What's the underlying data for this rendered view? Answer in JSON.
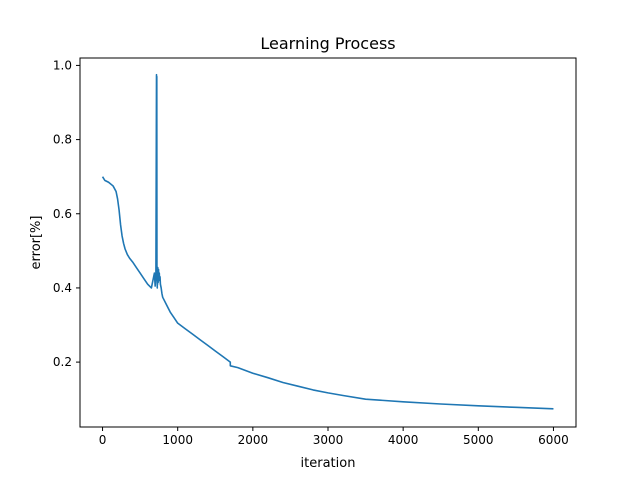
{
  "chart_data": {
    "type": "line",
    "title": "Learning Process",
    "xlabel": "iteration",
    "ylabel": "error[%]",
    "xlim": [
      -300,
      6300
    ],
    "ylim": [
      0.025,
      1.02
    ],
    "xticks": [
      0,
      1000,
      2000,
      3000,
      4000,
      5000,
      6000
    ],
    "xtick_labels": [
      "0",
      "1000",
      "2000",
      "3000",
      "4000",
      "5000",
      "6000"
    ],
    "yticks": [
      0.2,
      0.4,
      0.6,
      0.8,
      1.0
    ],
    "ytick_labels": [
      "0.2",
      "0.4",
      "0.6",
      "0.8",
      "1.0"
    ],
    "grid": false,
    "series": [
      {
        "color": "#1f77b4",
        "x": [
          0,
          30,
          80,
          140,
          180,
          200,
          220,
          240,
          260,
          280,
          300,
          330,
          360,
          400,
          450,
          500,
          550,
          600,
          650,
          690,
          700,
          710,
          718,
          720,
          722,
          724,
          726,
          728,
          730,
          732,
          735,
          740,
          745,
          750,
          755,
          760,
          765,
          770,
          780,
          790,
          800,
          850,
          900,
          950,
          1000,
          1100,
          1200,
          1300,
          1400,
          1500,
          1600,
          1700,
          1700,
          1800,
          2000,
          2200,
          2400,
          2600,
          2800,
          3000,
          3200,
          3500,
          4000,
          4500,
          5000,
          5500,
          6000
        ],
        "y": [
          0.7,
          0.69,
          0.685,
          0.675,
          0.66,
          0.64,
          0.61,
          0.57,
          0.54,
          0.52,
          0.505,
          0.49,
          0.48,
          0.47,
          0.455,
          0.44,
          0.425,
          0.41,
          0.4,
          0.44,
          0.405,
          0.43,
          0.975,
          0.43,
          0.97,
          0.42,
          0.45,
          0.4,
          0.44,
          0.41,
          0.455,
          0.415,
          0.45,
          0.42,
          0.44,
          0.42,
          0.43,
          0.41,
          0.4,
          0.385,
          0.375,
          0.355,
          0.335,
          0.32,
          0.305,
          0.29,
          0.275,
          0.26,
          0.245,
          0.23,
          0.215,
          0.2,
          0.19,
          0.185,
          0.17,
          0.158,
          0.145,
          0.135,
          0.125,
          0.117,
          0.11,
          0.1,
          0.093,
          0.087,
          0.082,
          0.078,
          0.074
        ]
      }
    ]
  }
}
